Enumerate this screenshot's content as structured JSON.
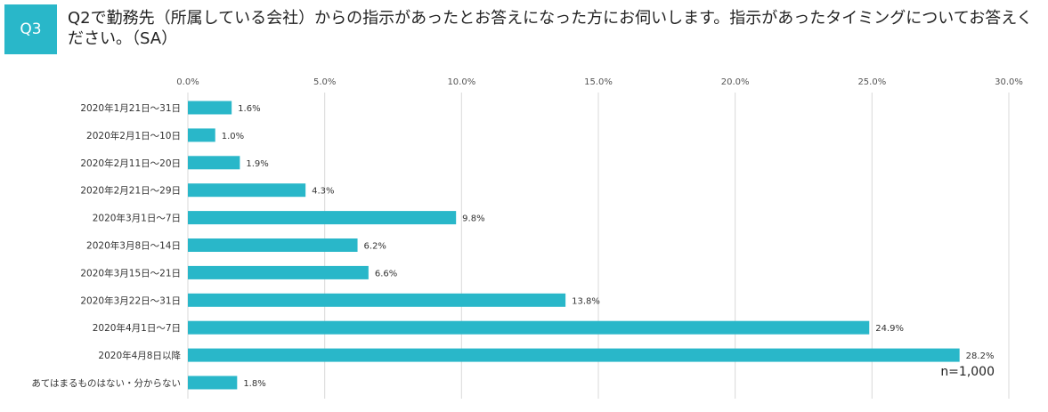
{
  "badge": "Q3",
  "question": "Q2で勤務先（所属している会社）からの指示があったとお答えになった方にお伺いします。指示があったタイミングについてお答えください。（SA）",
  "sample_note": "n=1,000",
  "colors": {
    "accent": "#29b7c9",
    "grid": "#d9d9d9"
  },
  "chart_data": {
    "type": "bar",
    "orientation": "horizontal",
    "title": "",
    "xlabel": "",
    "ylabel": "",
    "xlim": [
      0,
      30
    ],
    "x_ticks": [
      "0.0%",
      "5.0%",
      "10.0%",
      "15.0%",
      "20.0%",
      "25.0%",
      "30.0%"
    ],
    "categories": [
      "2020年1月21日～31日",
      "2020年2月1日～10日",
      "2020年2月11日～20日",
      "2020年2月21日～29日",
      "2020年3月1日～7日",
      "2020年3月8日～14日",
      "2020年3月15日～21日",
      "2020年3月22日～31日",
      "2020年4月1日～7日",
      "2020年4月8日以降",
      "あてはまるものはない・分からない"
    ],
    "values": [
      1.6,
      1.0,
      1.9,
      4.3,
      9.8,
      6.2,
      6.6,
      13.8,
      24.9,
      28.2,
      1.8
    ],
    "value_labels": [
      "1.6%",
      "1.0%",
      "1.9%",
      "4.3%",
      "9.8%",
      "6.2%",
      "6.6%",
      "13.8%",
      "24.9%",
      "28.2%",
      "1.8%"
    ],
    "grid": true,
    "legend": "none"
  }
}
